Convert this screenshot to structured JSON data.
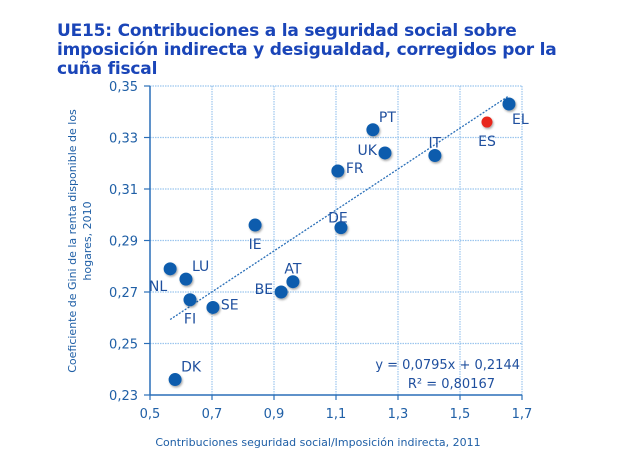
{
  "title_lines": [
    "UE15: Contribuciones a la seguridad social sobre",
    "imposición indirecta y desigualdad, corregidos por la",
    "cuña fiscal"
  ],
  "chart_data": {
    "type": "scatter",
    "title": "UE15: Contribuciones a la seguridad social sobre imposición indirecta y desigualdad, corregidos por la cuña fiscal",
    "xlabel": "Contribuciones seguridad social/Imposición indirecta, 2011",
    "ylabel_lines": [
      "Coeficiente de Gini de la renta disponible de los",
      "hogares, 2010"
    ],
    "xlim": [
      0.5,
      1.7
    ],
    "ylim": [
      0.23,
      0.35
    ],
    "x_ticks": [
      0.5,
      0.7,
      0.9,
      1.1,
      1.3,
      1.5,
      1.7
    ],
    "x_tick_labels": [
      "0,5",
      "0,7",
      "0,9",
      "1,1",
      "1,3",
      "1,5",
      "1,7"
    ],
    "y_ticks": [
      0.23,
      0.25,
      0.27,
      0.29,
      0.31,
      0.33,
      0.35
    ],
    "y_tick_labels": [
      "0,23",
      "0,25",
      "0,27",
      "0,29",
      "0,31",
      "0,33",
      "0,35"
    ],
    "grid": true,
    "colors": {
      "point": "#0a5cad",
      "highlight": "#e8261a",
      "trend": "#2a6fb8",
      "grid": "#9cc6ee",
      "axis": "#2a6fb8"
    },
    "points": [
      {
        "label": "EL",
        "x": 1.658,
        "y": 0.343,
        "highlight": false,
        "label_pos": "below-right"
      },
      {
        "label": "ES",
        "x": 1.587,
        "y": 0.336,
        "highlight": true,
        "label_pos": "below"
      },
      {
        "label": "PT",
        "x": 1.219,
        "y": 0.333,
        "highlight": false,
        "label_pos": "above-right"
      },
      {
        "label": "UK",
        "x": 1.258,
        "y": 0.324,
        "highlight": false,
        "label_pos": "left"
      },
      {
        "label": "IT",
        "x": 1.419,
        "y": 0.323,
        "highlight": false,
        "label_pos": "above"
      },
      {
        "label": "FR",
        "x": 1.106,
        "y": 0.317,
        "highlight": false,
        "label_pos": "right"
      },
      {
        "label": "DE",
        "x": 1.116,
        "y": 0.295,
        "highlight": false,
        "label_pos": "above-left"
      },
      {
        "label": "IE",
        "x": 0.839,
        "y": 0.296,
        "highlight": false,
        "label_pos": "below"
      },
      {
        "label": "AT",
        "x": 0.961,
        "y": 0.274,
        "highlight": false,
        "label_pos": "above"
      },
      {
        "label": "BE",
        "x": 0.923,
        "y": 0.27,
        "highlight": false,
        "label_pos": "left"
      },
      {
        "label": "LU",
        "x": 0.616,
        "y": 0.275,
        "highlight": false,
        "label_pos": "above-right"
      },
      {
        "label": "NL",
        "x": 0.565,
        "y": 0.279,
        "highlight": false,
        "label_pos": "below-left"
      },
      {
        "label": "FI",
        "x": 0.629,
        "y": 0.267,
        "highlight": false,
        "label_pos": "below"
      },
      {
        "label": "SE",
        "x": 0.703,
        "y": 0.264,
        "highlight": false,
        "label_pos": "right"
      },
      {
        "label": "DK",
        "x": 0.581,
        "y": 0.236,
        "highlight": false,
        "label_pos": "above-right"
      }
    ],
    "trendline": {
      "type": "linear",
      "slope": 0.0795,
      "intercept": 0.2144,
      "x_range": [
        0.565,
        1.658
      ],
      "equation_label": "y = 0,0795x + 0,2144",
      "r2_label": "R² = 0,80167"
    }
  }
}
